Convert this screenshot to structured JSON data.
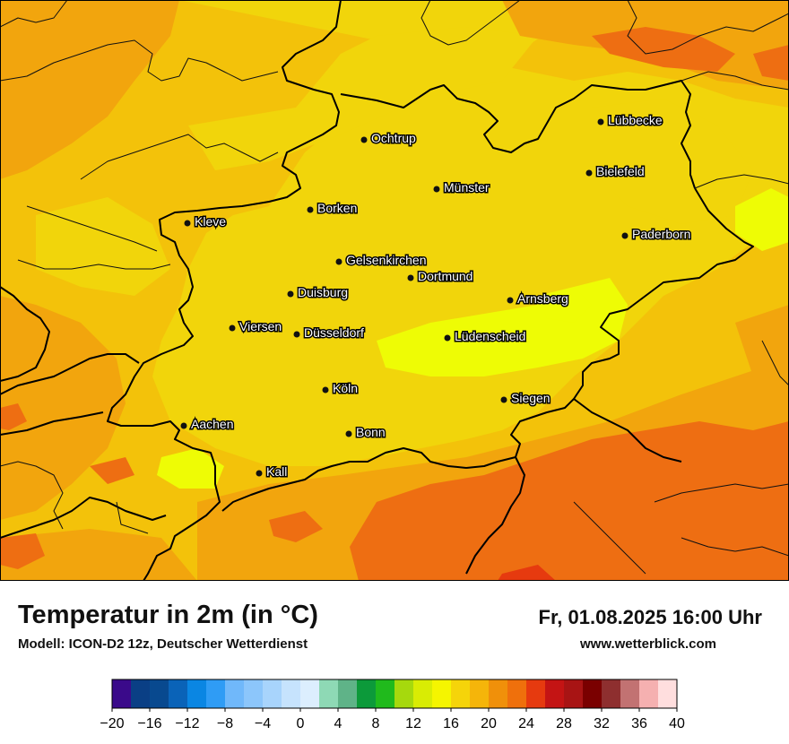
{
  "title": "Temperatur in 2m (in °C)",
  "subtitle": "Modell: ICON-D2 12z, Deutscher Wetterdienst",
  "datetime": "Fr, 01.08.2025 16:00 Uhr",
  "website": "www.wetterblick.com",
  "cities": [
    {
      "name": "Ochtrup"
    },
    {
      "name": "Lübbecke"
    },
    {
      "name": "Bielefeld"
    },
    {
      "name": "Münster"
    },
    {
      "name": "Borken"
    },
    {
      "name": "Kleve"
    },
    {
      "name": "Paderborn"
    },
    {
      "name": "Gelsenkirchen"
    },
    {
      "name": "Dortmund"
    },
    {
      "name": "Duisburg"
    },
    {
      "name": "Arnsberg"
    },
    {
      "name": "Viersen"
    },
    {
      "name": "Düsseldorf"
    },
    {
      "name": "Lüdenscheid"
    },
    {
      "name": "Köln"
    },
    {
      "name": "Siegen"
    },
    {
      "name": "Aachen"
    },
    {
      "name": "Bonn"
    },
    {
      "name": "Kall"
    }
  ],
  "legend": {
    "tick_labels": [
      "−20",
      "−16",
      "−12",
      "−8",
      "−4",
      "0",
      "4",
      "8",
      "12",
      "16",
      "20",
      "24",
      "28",
      "32",
      "36",
      "40"
    ],
    "colors": [
      "#3a0a8a",
      "#0a3f85",
      "#08498f",
      "#0a63b8",
      "#0a86e3",
      "#2f9cf5",
      "#70b8fa",
      "#8cc6fb",
      "#a8d4fc",
      "#c6e3fd",
      "#dceefe",
      "#8ed9b5",
      "#5fb388",
      "#0c9a3a",
      "#20ba1c",
      "#a6d90d",
      "#d9ec04",
      "#f5f500",
      "#f5d40a",
      "#f5b50a",
      "#f0900a",
      "#ef700c",
      "#e63a0f",
      "#c41414",
      "#a81414",
      "#7a0000",
      "#8e2f2f",
      "#c27272",
      "#f5b0b0",
      "#ffdede"
    ]
  },
  "map_colors": {
    "base": "#f3c20a",
    "light": "#f1d50b",
    "warm": "#f2a50d",
    "hot": "#ee6e12",
    "lime": "#eefc05",
    "border": "#000000",
    "city_dot": "#111111",
    "city_label": "#ffffff"
  }
}
